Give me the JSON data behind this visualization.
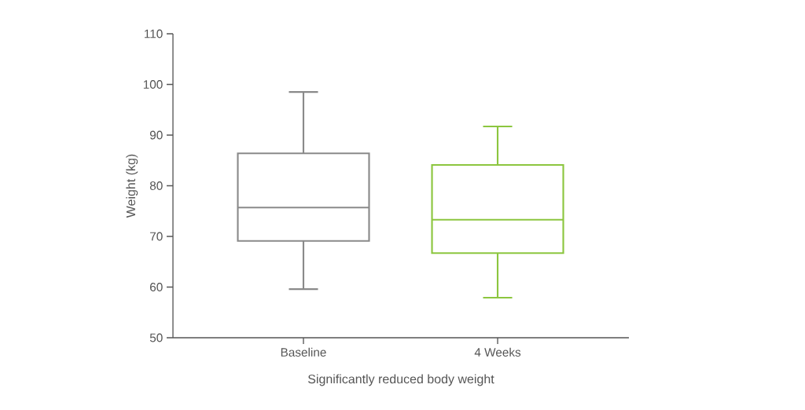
{
  "chart_data": {
    "type": "box",
    "xlabel": "Significantly reduced body weight",
    "ylabel": "Weight (kg)",
    "categories": [
      "Baseline",
      "4 Weeks"
    ],
    "boxes": [
      {
        "low": 59.6,
        "q1": 69.1,
        "median": 75.7,
        "q3": 86.4,
        "high": 98.5
      },
      {
        "low": 57.9,
        "q1": 66.7,
        "median": 73.3,
        "q3": 84.1,
        "high": 91.7
      }
    ],
    "colors": [
      "#8a8a8a",
      "#8cc63f"
    ],
    "ylim": [
      50,
      110
    ],
    "yticks": [
      50,
      60,
      70,
      80,
      90,
      100,
      110
    ]
  }
}
